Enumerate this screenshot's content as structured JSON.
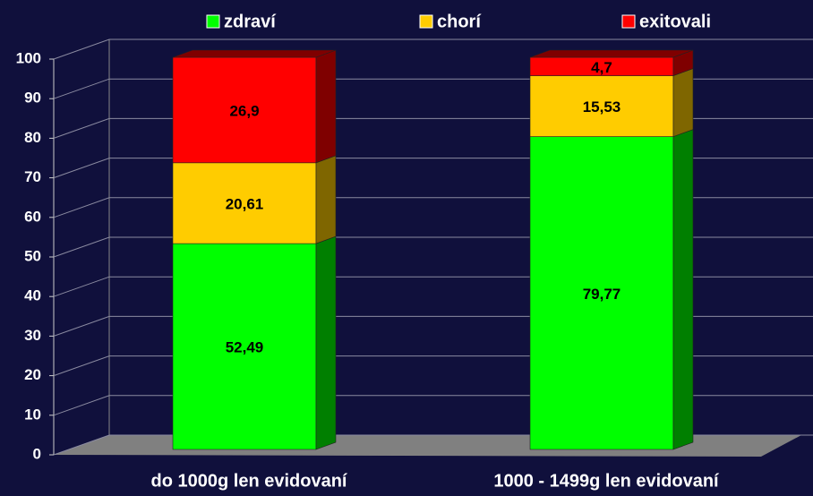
{
  "chart_data": {
    "type": "bar3d_stacked",
    "categories": [
      "do 1000g len evidovaní",
      "1000 - 1499g len evidovaní"
    ],
    "series": [
      {
        "name": "zdraví",
        "color": "#00ff00",
        "values": [
          52.49,
          79.77
        ],
        "value_labels": [
          "52,49",
          "79,77"
        ]
      },
      {
        "name": "chorí",
        "color": "#ffcc00",
        "values": [
          20.61,
          15.53
        ],
        "value_labels": [
          "20,61",
          "15,53"
        ]
      },
      {
        "name": "exitovali",
        "color": "#ff0000",
        "values": [
          26.9,
          4.7
        ],
        "value_labels": [
          "26,9",
          "4,7"
        ]
      }
    ],
    "ylim": [
      0,
      100
    ],
    "yticks": [
      0,
      10,
      20,
      30,
      40,
      50,
      60,
      70,
      80,
      90,
      100
    ],
    "grid": true,
    "legend": "top"
  }
}
